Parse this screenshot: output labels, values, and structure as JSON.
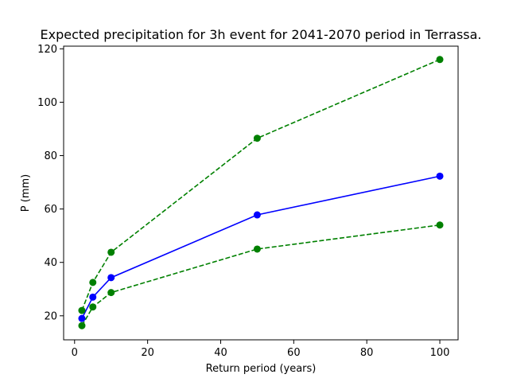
{
  "chart_data": {
    "type": "line",
    "title": "Expected precipitation for 3h event for 2041-2070 period in Terrassa.",
    "xlabel": "Return period (years)",
    "ylabel": "P (mm)",
    "xlim": [
      -3,
      105
    ],
    "ylim": [
      11,
      121
    ],
    "xticks": [
      0,
      20,
      40,
      60,
      80,
      100
    ],
    "yticks": [
      20,
      40,
      60,
      80,
      100,
      120
    ],
    "grid": false,
    "x": [
      2,
      5,
      10,
      50,
      100
    ],
    "series": [
      {
        "values": [
          16.3,
          23.3,
          28.7,
          45.0,
          54.0
        ],
        "color": "#008000",
        "linestyle": "dashed",
        "marker": "circle"
      },
      {
        "values": [
          19.0,
          27.0,
          34.3,
          57.8,
          72.3
        ],
        "color": "#0000ff",
        "linestyle": "solid",
        "marker": "circle"
      },
      {
        "values": [
          22.0,
          32.5,
          43.8,
          86.5,
          116.0
        ],
        "color": "#008000",
        "linestyle": "dashed",
        "marker": "circle"
      }
    ]
  }
}
